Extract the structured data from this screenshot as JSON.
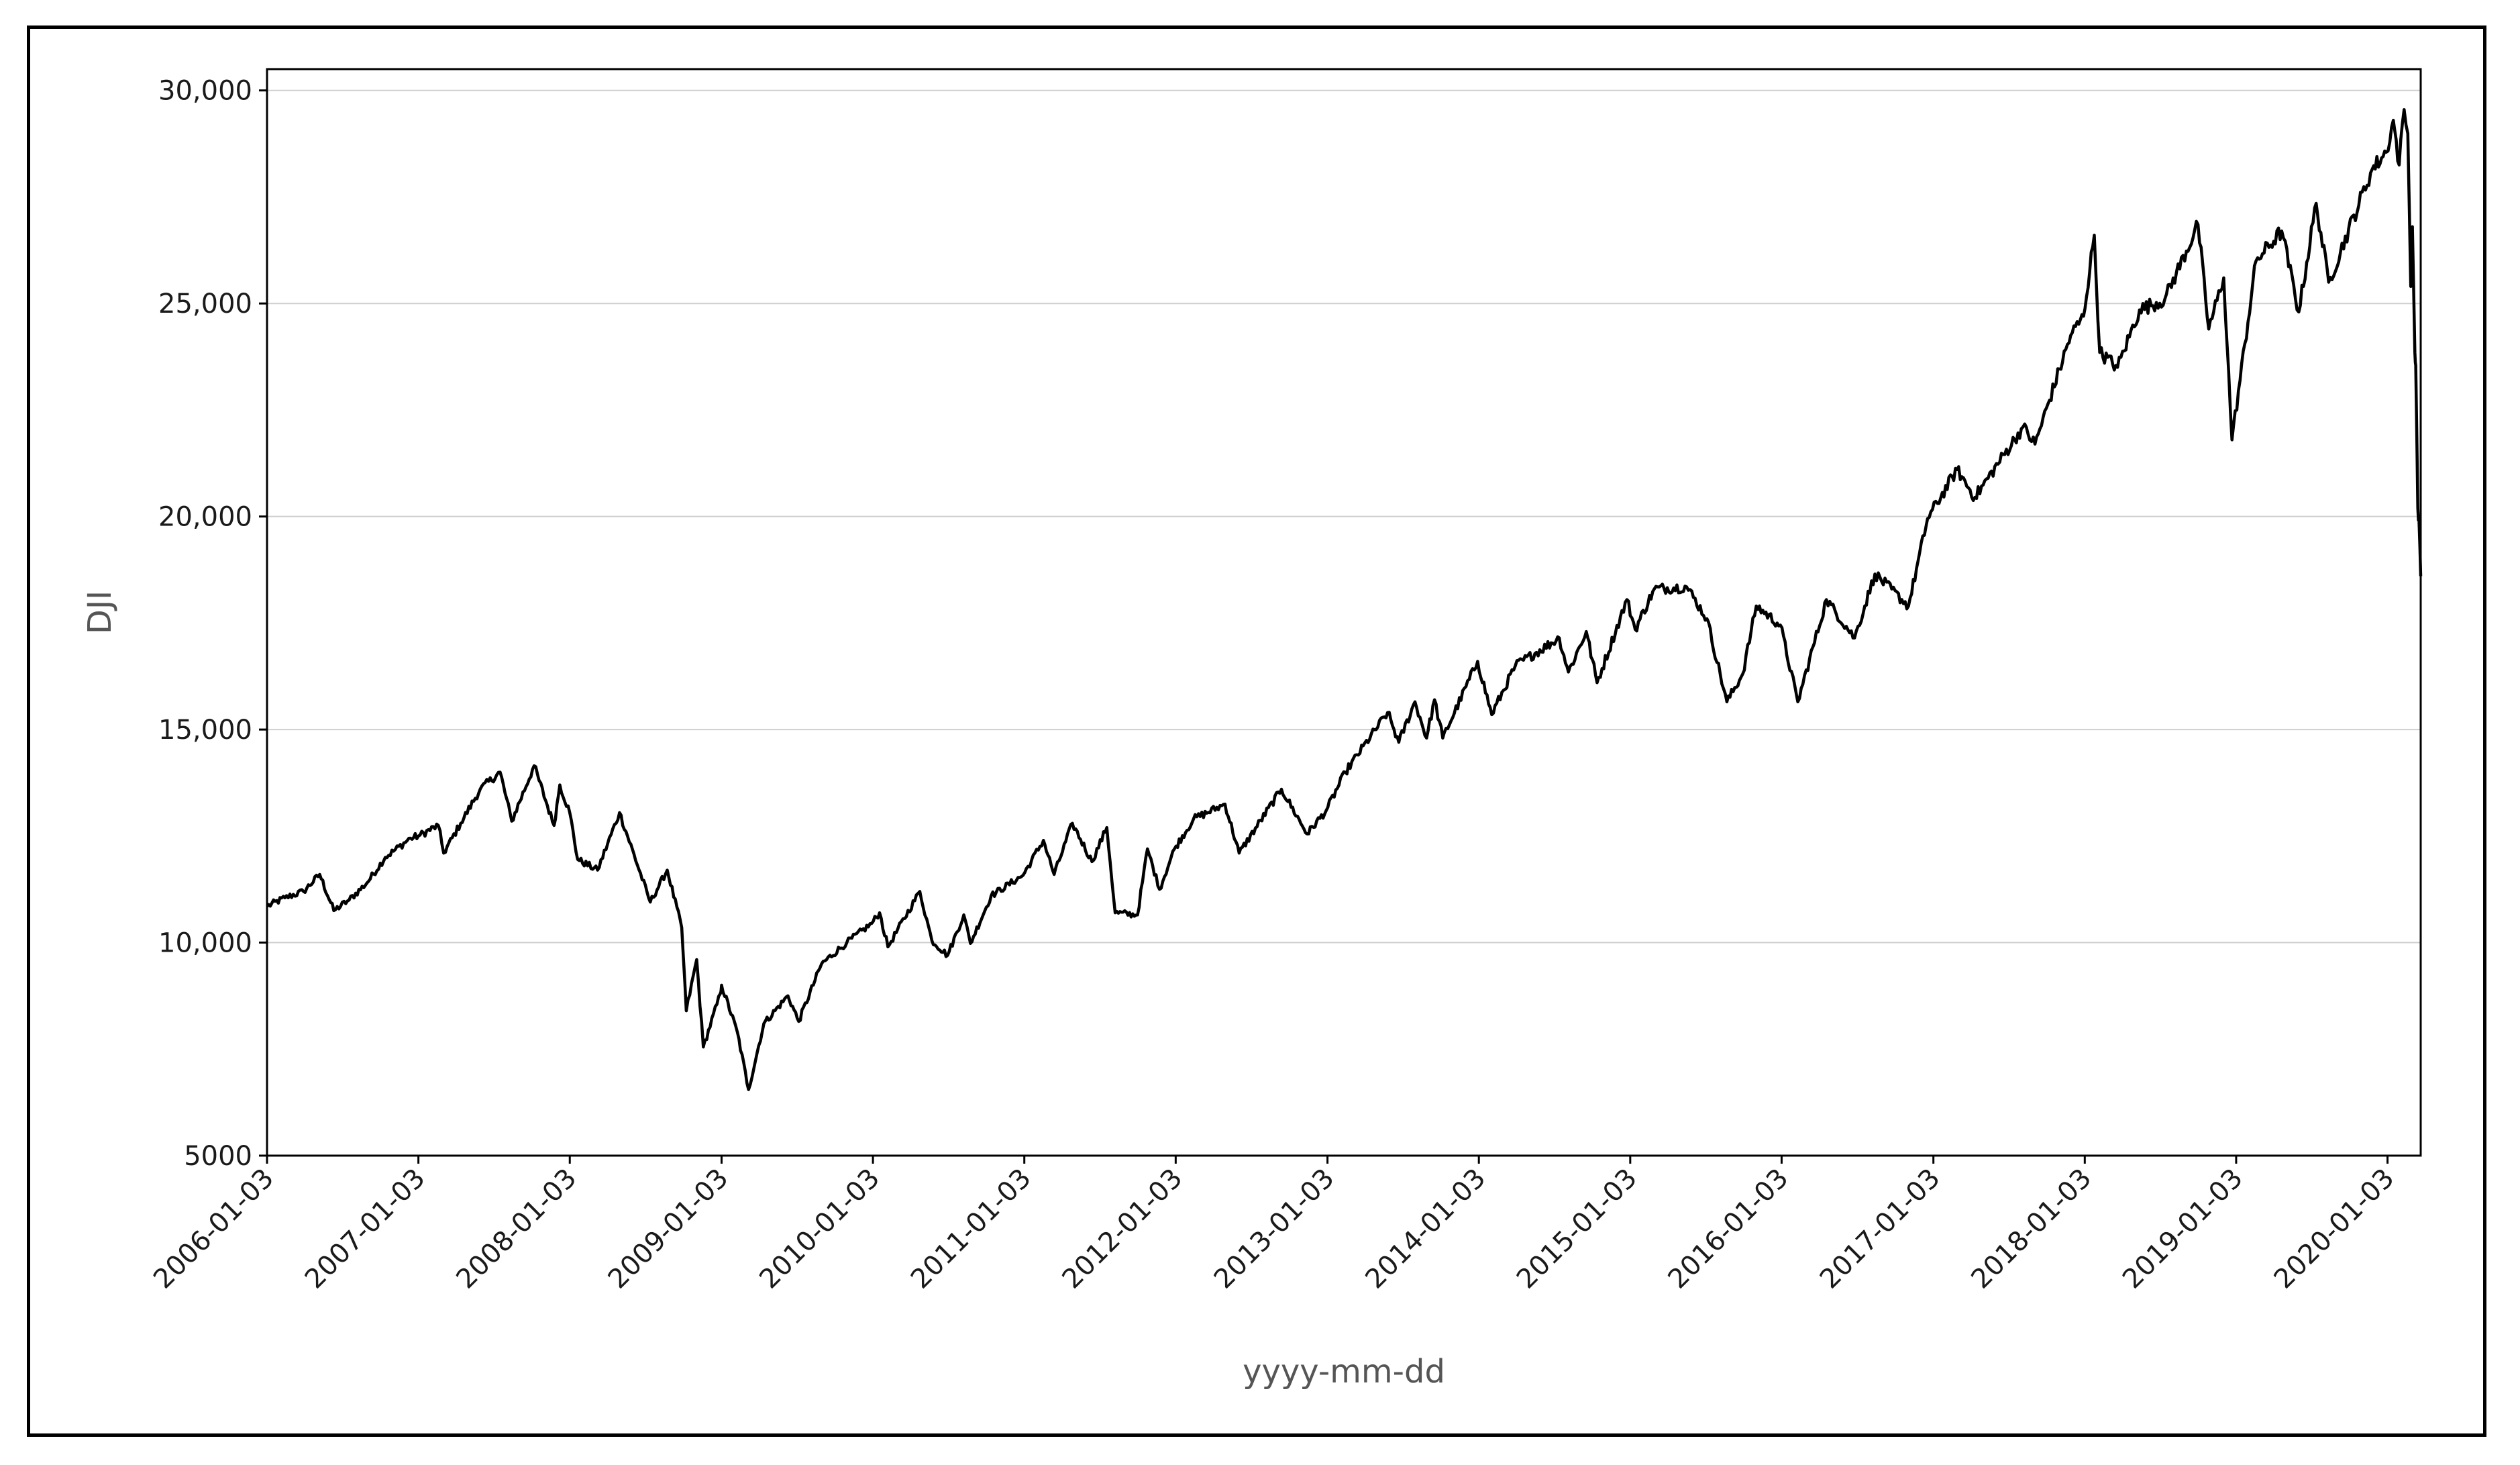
{
  "chart_data": {
    "type": "line",
    "title": "",
    "xlabel": "yyyy-mm-dd",
    "ylabel": "DJI",
    "ylim": [
      5000,
      30500
    ],
    "xlim": [
      "2006-01-03",
      "2020-03-23"
    ],
    "grid": {
      "y": true,
      "x": false
    },
    "legend": "none",
    "line_color": "#000000",
    "yticks": [
      {
        "value": 5000,
        "label": "5000"
      },
      {
        "value": 10000,
        "label": "10,000"
      },
      {
        "value": 15000,
        "label": "15,000"
      },
      {
        "value": 20000,
        "label": "20,000"
      },
      {
        "value": 25000,
        "label": "25,000"
      },
      {
        "value": 30000,
        "label": "30,000"
      }
    ],
    "xticks": [
      "2006-01-03",
      "2007-01-03",
      "2008-01-03",
      "2009-01-03",
      "2010-01-03",
      "2011-01-03",
      "2012-01-03",
      "2013-01-03",
      "2014-01-03",
      "2015-01-03",
      "2016-01-03",
      "2017-01-03",
      "2018-01-03",
      "2019-01-03",
      "2020-01-03"
    ],
    "series": [
      {
        "points": [
          [
            "2006-01-03",
            10850
          ],
          [
            "2006-02-15",
            11050
          ],
          [
            "2006-04-01",
            11200
          ],
          [
            "2006-05-10",
            11600
          ],
          [
            "2006-06-13",
            10750
          ],
          [
            "2006-07-20",
            11000
          ],
          [
            "2006-09-01",
            11400
          ],
          [
            "2006-10-15",
            12000
          ],
          [
            "2006-12-15",
            12450
          ],
          [
            "2007-01-03",
            12500
          ],
          [
            "2007-02-20",
            12750
          ],
          [
            "2007-03-05",
            12100
          ],
          [
            "2007-04-15",
            12800
          ],
          [
            "2007-06-01",
            13600
          ],
          [
            "2007-07-19",
            14000
          ],
          [
            "2007-08-16",
            12850
          ],
          [
            "2007-10-09",
            14150
          ],
          [
            "2007-11-26",
            12750
          ],
          [
            "2007-12-10",
            13700
          ],
          [
            "2008-01-03",
            13050
          ],
          [
            "2008-01-22",
            11950
          ],
          [
            "2008-03-10",
            11700
          ],
          [
            "2008-05-02",
            13050
          ],
          [
            "2008-07-15",
            10950
          ],
          [
            "2008-08-25",
            11700
          ],
          [
            "2008-09-29",
            10350
          ],
          [
            "2008-10-10",
            8400
          ],
          [
            "2008-11-04",
            9600
          ],
          [
            "2008-11-20",
            7550
          ],
          [
            "2008-12-31",
            8800
          ],
          [
            "2009-01-03",
            9000
          ],
          [
            "2009-02-10",
            7900
          ],
          [
            "2009-03-09",
            6550
          ],
          [
            "2009-04-15",
            8100
          ],
          [
            "2009-06-12",
            8750
          ],
          [
            "2009-07-08",
            8150
          ],
          [
            "2009-09-01",
            9500
          ],
          [
            "2009-11-01",
            10000
          ],
          [
            "2009-12-31",
            10450
          ],
          [
            "2010-01-19",
            10700
          ],
          [
            "2010-02-08",
            9900
          ],
          [
            "2010-04-26",
            11200
          ],
          [
            "2010-05-25",
            10050
          ],
          [
            "2010-07-02",
            9700
          ],
          [
            "2010-08-10",
            10650
          ],
          [
            "2010-08-26",
            9980
          ],
          [
            "2010-10-15",
            11100
          ],
          [
            "2010-12-31",
            11580
          ],
          [
            "2011-02-18",
            12400
          ],
          [
            "2011-03-16",
            11600
          ],
          [
            "2011-04-29",
            12800
          ],
          [
            "2011-06-15",
            11900
          ],
          [
            "2011-07-21",
            12700
          ],
          [
            "2011-08-10",
            10700
          ],
          [
            "2011-10-03",
            10650
          ],
          [
            "2011-10-27",
            12200
          ],
          [
            "2011-11-25",
            11250
          ],
          [
            "2011-12-31",
            12200
          ],
          [
            "2012-02-15",
            12900
          ],
          [
            "2012-05-01",
            13250
          ],
          [
            "2012-06-04",
            12100
          ],
          [
            "2012-09-14",
            13600
          ],
          [
            "2012-11-15",
            12550
          ],
          [
            "2012-12-31",
            13100
          ],
          [
            "2013-02-15",
            14000
          ],
          [
            "2013-05-28",
            15400
          ],
          [
            "2013-06-24",
            14700
          ],
          [
            "2013-08-02",
            15650
          ],
          [
            "2013-08-30",
            14800
          ],
          [
            "2013-09-18",
            15700
          ],
          [
            "2013-10-08",
            14800
          ],
          [
            "2013-12-31",
            16600
          ],
          [
            "2014-02-03",
            15350
          ],
          [
            "2014-04-01",
            16500
          ],
          [
            "2014-07-16",
            17150
          ],
          [
            "2014-08-07",
            16350
          ],
          [
            "2014-09-19",
            17300
          ],
          [
            "2014-10-15",
            16100
          ],
          [
            "2014-12-26",
            18050
          ],
          [
            "2015-01-15",
            17350
          ],
          [
            "2015-03-02",
            18300
          ],
          [
            "2015-05-19",
            18350
          ],
          [
            "2015-07-07",
            17600
          ],
          [
            "2015-08-24",
            15650
          ],
          [
            "2015-10-01",
            16300
          ],
          [
            "2015-11-03",
            17900
          ],
          [
            "2015-12-31",
            17450
          ],
          [
            "2016-02-11",
            15650
          ],
          [
            "2016-04-20",
            18050
          ],
          [
            "2016-06-27",
            17150
          ],
          [
            "2016-08-15",
            18650
          ],
          [
            "2016-11-04",
            17900
          ],
          [
            "2016-12-20",
            19950
          ],
          [
            "2017-03-01",
            21100
          ],
          [
            "2017-04-13",
            20450
          ],
          [
            "2017-08-07",
            22100
          ],
          [
            "2017-09-05",
            21700
          ],
          [
            "2017-11-30",
            24250
          ],
          [
            "2017-12-31",
            24700
          ],
          [
            "2018-01-26",
            26600
          ],
          [
            "2018-02-08",
            23850
          ],
          [
            "2018-03-23",
            23500
          ],
          [
            "2018-05-15",
            24850
          ],
          [
            "2018-07-15",
            25100
          ],
          [
            "2018-10-03",
            26850
          ],
          [
            "2018-10-29",
            24400
          ],
          [
            "2018-12-04",
            25600
          ],
          [
            "2018-12-24",
            21800
          ],
          [
            "2019-02-20",
            26000
          ],
          [
            "2019-04-23",
            26700
          ],
          [
            "2019-06-03",
            24800
          ],
          [
            "2019-07-15",
            27350
          ],
          [
            "2019-08-14",
            25500
          ],
          [
            "2019-11-27",
            28150
          ],
          [
            "2019-12-31",
            28550
          ],
          [
            "2020-01-17",
            29300
          ],
          [
            "2020-01-31",
            28250
          ],
          [
            "2020-02-12",
            29550
          ],
          [
            "2020-02-21",
            28990
          ],
          [
            "2020-02-28",
            25400
          ],
          [
            "2020-03-03",
            26800
          ],
          [
            "2020-03-09",
            23850
          ],
          [
            "2020-03-11",
            23550
          ],
          [
            "2020-03-16",
            20200
          ],
          [
            "2020-03-19",
            19900
          ],
          [
            "2020-03-23",
            18600
          ]
        ]
      }
    ]
  }
}
